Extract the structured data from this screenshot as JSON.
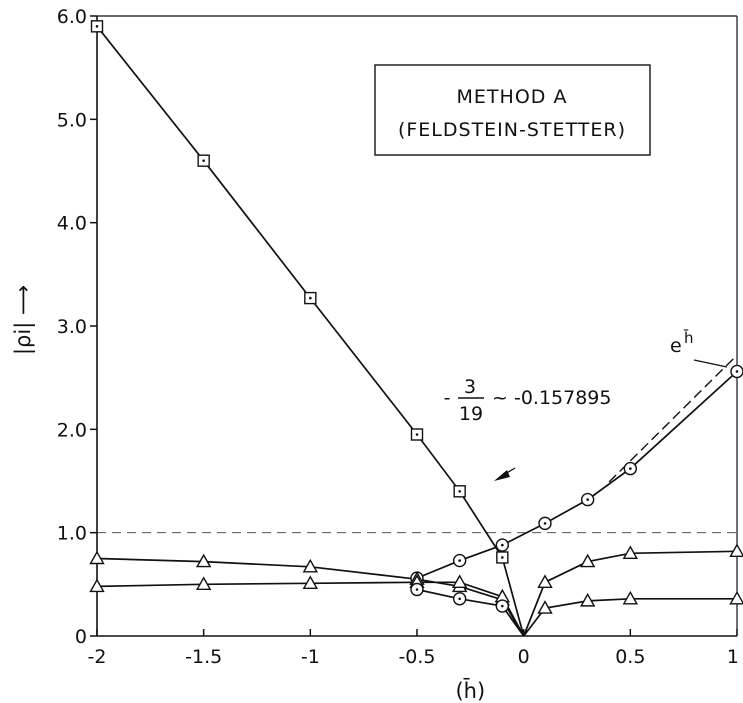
{
  "chart_data": {
    "type": "line",
    "title": "",
    "legend_box": {
      "line1": "METHOD A",
      "line2": "(FELDSTEIN-STETTER)"
    },
    "xlabel": "(h̄)",
    "ylabel": "|ρi| ⟶",
    "xlim": [
      -2,
      1
    ],
    "ylim": [
      0,
      6
    ],
    "x_ticks": [
      -2,
      -1.5,
      -1,
      -0.5,
      0,
      0.5,
      1
    ],
    "x_tick_labels": [
      "-2",
      "-1.5",
      "-1",
      "-0.5",
      "0",
      "0.5",
      "1"
    ],
    "y_ticks": [
      0,
      1,
      2,
      3,
      4,
      5,
      6
    ],
    "y_tick_labels": [
      "0",
      "1.0",
      "2.0",
      "3.0",
      "4.0",
      "5.0",
      "6.0"
    ],
    "reference_line": {
      "y": 1.0,
      "style": "dashed"
    },
    "annotations": {
      "fraction_sign": "-",
      "fraction_num": "3",
      "fraction_den": "19",
      "approx": "~ -0.157895",
      "exp_base": "e",
      "exp_sup": "h̄"
    },
    "series": [
      {
        "marker": "square",
        "x": [
          -2,
          -1.5,
          -1,
          -0.5,
          -0.3,
          -0.1,
          0
        ],
        "y": [
          5.9,
          4.6,
          3.27,
          1.95,
          1.4,
          0.76,
          0
        ]
      },
      {
        "marker": "circle",
        "x": [
          -0.5,
          -0.3,
          -0.1,
          0.1,
          0.3,
          0.5,
          1
        ],
        "y": [
          0.56,
          0.73,
          0.88,
          1.09,
          1.32,
          1.62,
          2.56
        ]
      },
      {
        "marker": "triangle",
        "x": [
          -2,
          -1.5,
          -1,
          -0.5,
          -0.3,
          -0.1,
          0
        ],
        "y": [
          0.75,
          0.72,
          0.67,
          0.55,
          0.48,
          0.35,
          0
        ]
      },
      {
        "marker": "triangle",
        "x": [
          -2,
          -1.5,
          -1,
          -0.5,
          -0.3,
          -0.1,
          0
        ],
        "y": [
          0.48,
          0.5,
          0.51,
          0.52,
          0.52,
          0.38,
          0
        ]
      },
      {
        "marker": "circle",
        "x": [
          -0.5,
          -0.3,
          -0.1,
          0
        ],
        "y": [
          0.45,
          0.36,
          0.29,
          0
        ]
      },
      {
        "marker": "triangle",
        "x": [
          0,
          0.1,
          0.3,
          0.5,
          1
        ],
        "y": [
          0,
          0.52,
          0.72,
          0.8,
          0.82
        ]
      },
      {
        "marker": "triangle",
        "x": [
          0,
          0.1,
          0.3,
          0.5,
          1
        ],
        "y": [
          0,
          0.27,
          0.34,
          0.36,
          0.36
        ]
      }
    ],
    "exp_reference": {
      "style": "dashed",
      "x": [
        0.4,
        1
      ],
      "y": [
        1.49,
        2.718
      ]
    }
  }
}
